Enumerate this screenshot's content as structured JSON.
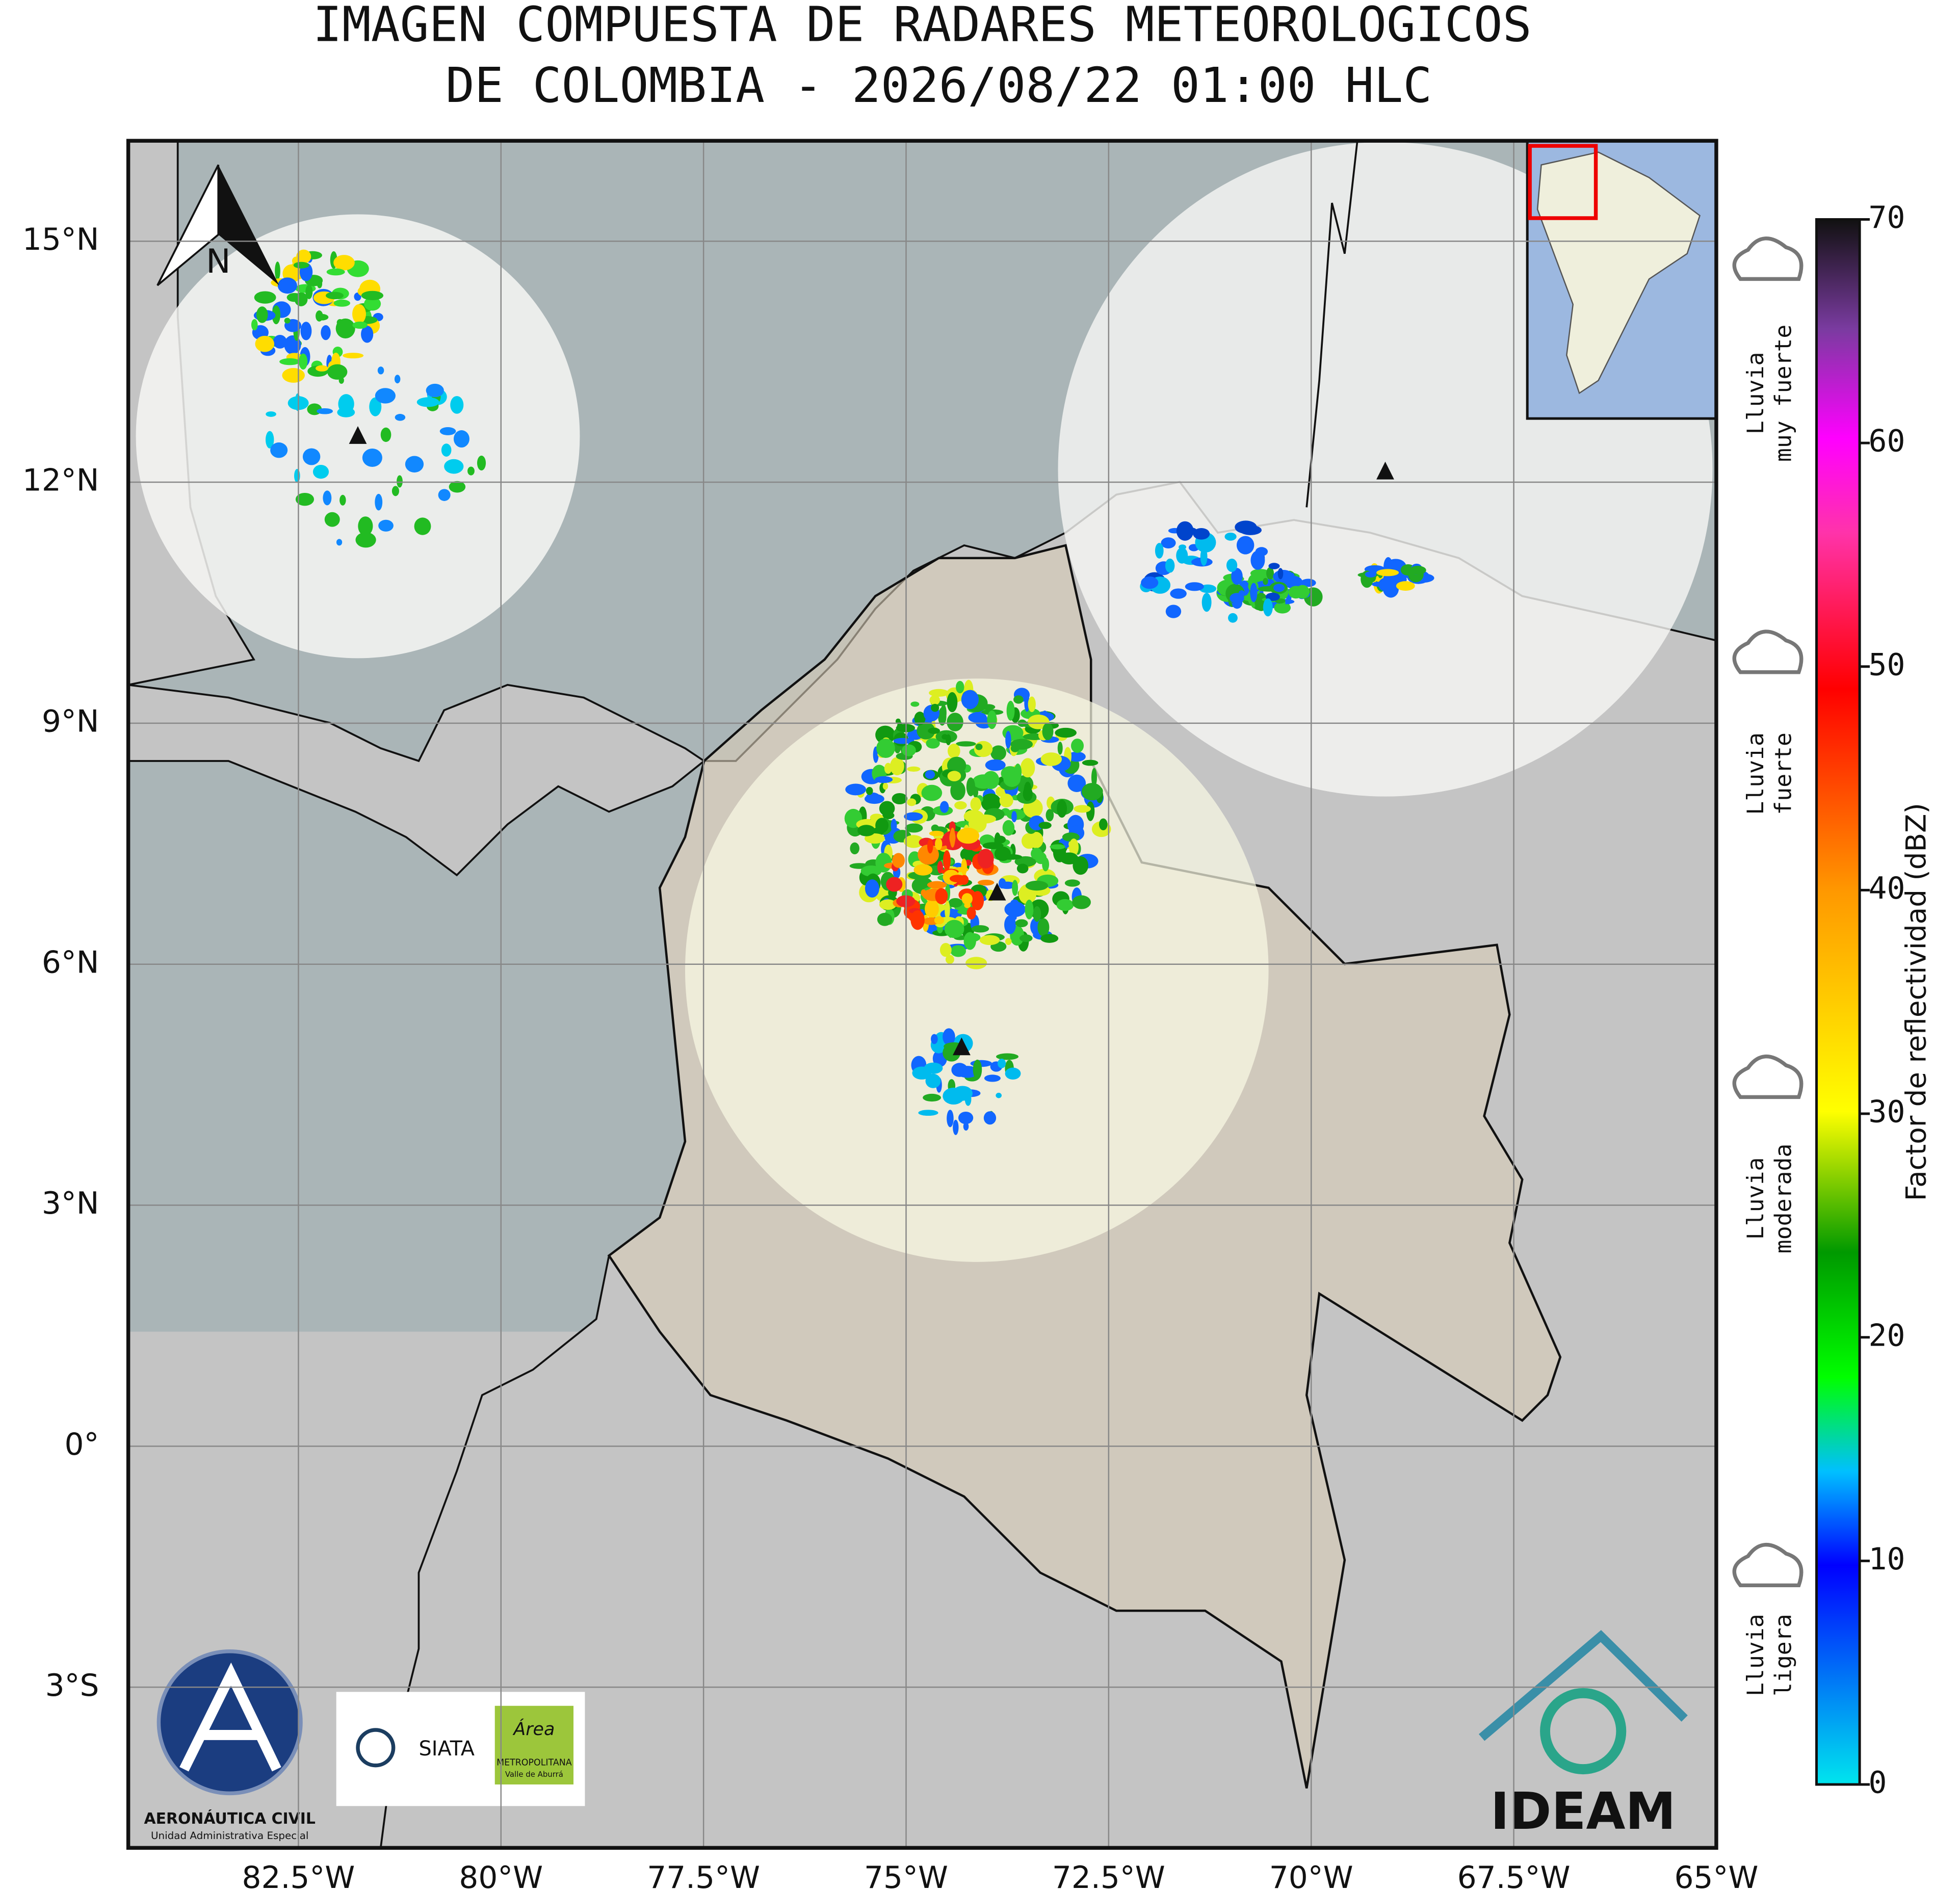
{
  "title": [
    "IMAGEN COMPUESTA DE RADARES METEOROLOGICOS",
    "DE COLOMBIA - 2026/08/22 01:00 HLC"
  ],
  "map": {
    "xlim": [
      -84.6,
      -65
    ],
    "ylim": [
      -5,
      16.25
    ],
    "xticks": [
      {
        "value": -82.5,
        "label": "82.5°W"
      },
      {
        "value": -80,
        "label": "80°W"
      },
      {
        "value": -77.5,
        "label": "77.5°W"
      },
      {
        "value": -75,
        "label": "75°W"
      },
      {
        "value": -72.5,
        "label": "72.5°W"
      },
      {
        "value": -70,
        "label": "70°W"
      },
      {
        "value": -67.5,
        "label": "67.5°W"
      },
      {
        "value": -65,
        "label": "65°W"
      }
    ],
    "yticks": [
      {
        "value": 15,
        "label": "15°N"
      },
      {
        "value": 12,
        "label": "12°N"
      },
      {
        "value": 9,
        "label": "9°N"
      },
      {
        "value": 6,
        "label": "6°N"
      },
      {
        "value": 3,
        "label": "3°N"
      },
      {
        "value": 0,
        "label": "0°"
      },
      {
        "value": -3,
        "label": "3°S"
      }
    ],
    "grid": true,
    "north_label": "N"
  },
  "colorbar": {
    "label": "Factor de reflectividad (dBZ)",
    "lim": [
      0,
      70
    ],
    "ticks": [
      0,
      10,
      20,
      30,
      40,
      50,
      60,
      70
    ]
  },
  "rain_legend": [
    {
      "lines": [
        "Lluvia",
        "muy fuerte"
      ]
    },
    {
      "lines": [
        "Lluvia",
        "fuerte"
      ]
    },
    {
      "lines": [
        "Lluvia",
        "moderada"
      ]
    },
    {
      "lines": [
        "Lluvia",
        "ligera"
      ]
    }
  ],
  "logos": {
    "aerocivil": [
      "AERONÁUTICA CIVIL",
      "Unidad Administrativa Especial"
    ],
    "siata": "SIATA",
    "area": [
      "Área",
      "METROPOLITANA",
      "Valle de Aburrá"
    ],
    "ideam": "IDEAM"
  }
}
